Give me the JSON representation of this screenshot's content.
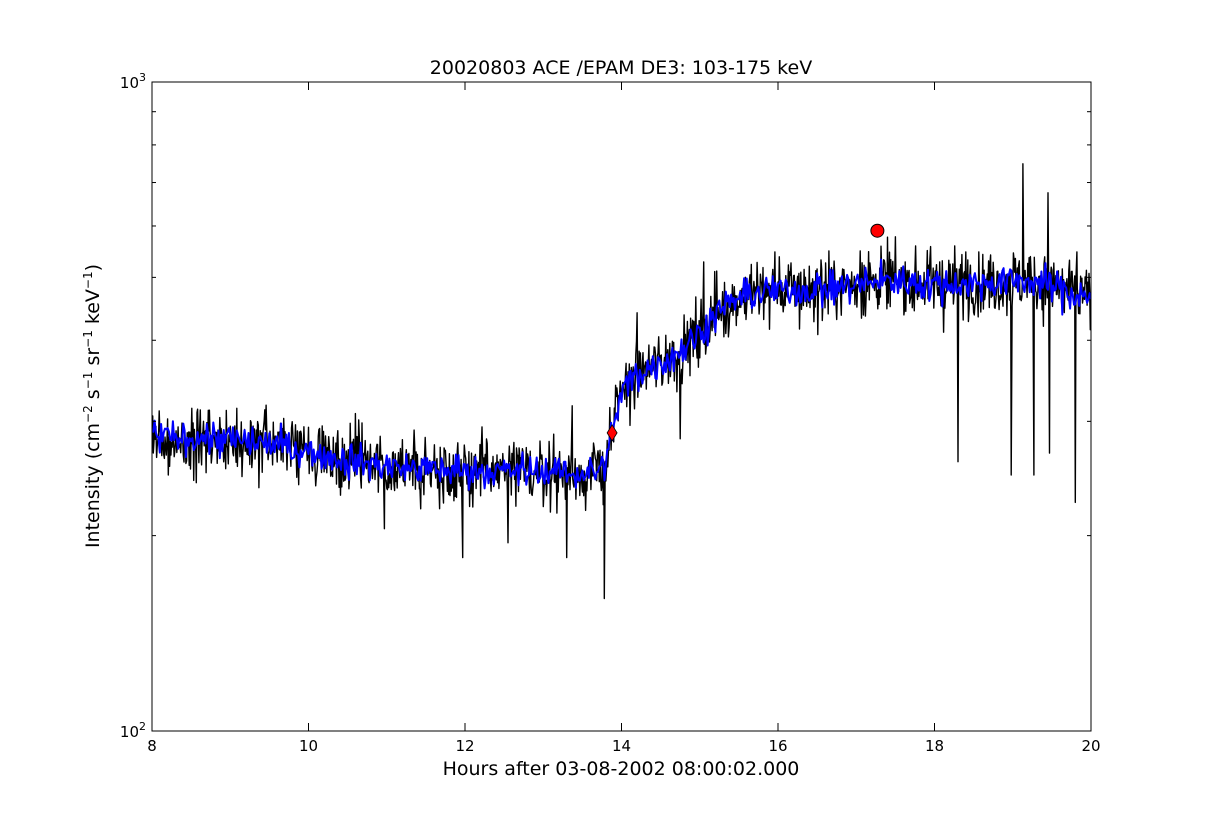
{
  "chart_data": {
    "type": "line",
    "title": "20020803 ACE /EPAM DE3: 103-175 keV",
    "xlabel": "Hours after 03-08-2002 08:00:02.000",
    "ylabel": {
      "parts": [
        {
          "text": "Intensity (cm",
          "sup": false
        },
        {
          "text": "−2",
          "sup": true
        },
        {
          "text": " s",
          "sup": false
        },
        {
          "text": "−1",
          "sup": true
        },
        {
          "text": " sr",
          "sup": false
        },
        {
          "text": "−1",
          "sup": true
        },
        {
          "text": " keV",
          "sup": false
        },
        {
          "text": "−1",
          "sup": true
        },
        {
          "text": ")",
          "sup": false
        }
      ]
    },
    "xlim": [
      8,
      20
    ],
    "ylim": [
      100,
      1000
    ],
    "yscale": "log",
    "xticks": [
      8,
      10,
      12,
      14,
      16,
      18,
      20
    ],
    "xtick_labels": [
      "8",
      "10",
      "12",
      "14",
      "16",
      "18",
      "20"
    ],
    "yticks_major": [
      {
        "value": 100,
        "base": "10",
        "exp": "2"
      },
      {
        "value": 1000,
        "base": "10",
        "exp": "3"
      }
    ],
    "yticks_minor": [
      200,
      300,
      400,
      500,
      600,
      700,
      800,
      900
    ],
    "grid": false,
    "series": [
      {
        "style": "raw",
        "color": "#000000",
        "points": [
          [
            8.0,
            285
          ],
          [
            8.3,
            282
          ],
          [
            8.6,
            284
          ],
          [
            8.9,
            281
          ],
          [
            9.2,
            279
          ],
          [
            9.5,
            277
          ],
          [
            9.8,
            273
          ],
          [
            10.1,
            268
          ],
          [
            10.4,
            263
          ],
          [
            10.7,
            259
          ],
          [
            11.0,
            256
          ],
          [
            11.3,
            254
          ],
          [
            11.6,
            253
          ],
          [
            11.9,
            252
          ],
          [
            12.2,
            252
          ],
          [
            12.5,
            251
          ],
          [
            12.8,
            251
          ],
          [
            13.1,
            251
          ],
          [
            13.4,
            250
          ],
          [
            13.6,
            250
          ],
          [
            13.75,
            253
          ],
          [
            13.85,
            275
          ],
          [
            13.95,
            315
          ],
          [
            14.05,
            340
          ],
          [
            14.2,
            355
          ],
          [
            14.4,
            365
          ],
          [
            14.6,
            375
          ],
          [
            14.8,
            390
          ],
          [
            15.0,
            410
          ],
          [
            15.2,
            440
          ],
          [
            15.5,
            465
          ],
          [
            15.8,
            475
          ],
          [
            16.2,
            478
          ],
          [
            16.6,
            480
          ],
          [
            17.0,
            487
          ],
          [
            17.3,
            495
          ],
          [
            17.7,
            492
          ],
          [
            18.1,
            487
          ],
          [
            18.5,
            490
          ],
          [
            18.9,
            492
          ],
          [
            19.2,
            495
          ],
          [
            19.5,
            485
          ],
          [
            19.8,
            470
          ],
          [
            20.0,
            470
          ]
        ]
      },
      {
        "style": "smoothed",
        "color": "#0000ff",
        "points": [
          [
            8.0,
            285
          ],
          [
            8.3,
            282
          ],
          [
            8.6,
            284
          ],
          [
            8.9,
            281
          ],
          [
            9.2,
            279
          ],
          [
            9.5,
            277
          ],
          [
            9.8,
            273
          ],
          [
            10.1,
            268
          ],
          [
            10.4,
            263
          ],
          [
            10.7,
            259
          ],
          [
            11.0,
            256
          ],
          [
            11.3,
            254
          ],
          [
            11.6,
            253
          ],
          [
            11.9,
            252
          ],
          [
            12.2,
            252
          ],
          [
            12.5,
            251
          ],
          [
            12.8,
            251
          ],
          [
            13.1,
            251
          ],
          [
            13.4,
            250
          ],
          [
            13.6,
            250
          ],
          [
            13.75,
            253
          ],
          [
            13.85,
            275
          ],
          [
            13.95,
            315
          ],
          [
            14.05,
            340
          ],
          [
            14.2,
            355
          ],
          [
            14.4,
            365
          ],
          [
            14.6,
            375
          ],
          [
            14.8,
            390
          ],
          [
            15.0,
            410
          ],
          [
            15.2,
            440
          ],
          [
            15.5,
            465
          ],
          [
            15.8,
            475
          ],
          [
            16.2,
            478
          ],
          [
            16.6,
            480
          ],
          [
            17.0,
            487
          ],
          [
            17.3,
            495
          ],
          [
            17.7,
            492
          ],
          [
            18.1,
            487
          ],
          [
            18.5,
            490
          ],
          [
            18.9,
            492
          ],
          [
            19.2,
            495
          ],
          [
            19.5,
            485
          ],
          [
            19.8,
            470
          ],
          [
            20.0,
            470
          ]
        ]
      }
    ],
    "dips": [
      [
        10.97,
        205
      ],
      [
        11.97,
        185
      ],
      [
        12.55,
        195
      ],
      [
        13.3,
        185
      ],
      [
        13.78,
        160
      ],
      [
        14.75,
        282
      ],
      [
        18.3,
        260
      ],
      [
        18.98,
        248
      ],
      [
        19.27,
        248
      ],
      [
        19.47,
        268
      ],
      [
        19.8,
        225
      ]
    ],
    "spikes": [
      [
        8.72,
        312
      ],
      [
        13.37,
        317
      ],
      [
        14.2,
        441
      ],
      [
        15.05,
        528
      ],
      [
        15.96,
        547
      ],
      [
        16.65,
        549
      ],
      [
        17.05,
        549
      ],
      [
        18.4,
        547
      ],
      [
        19.13,
        748
      ],
      [
        19.45,
        675
      ],
      [
        19.82,
        547
      ]
    ],
    "markers": [
      {
        "x": 13.88,
        "y": 288,
        "color": "#ff0000",
        "shape": "diamond"
      },
      {
        "x": 17.27,
        "y": 590,
        "color": "#ff0000",
        "shape": "circle"
      }
    ]
  }
}
